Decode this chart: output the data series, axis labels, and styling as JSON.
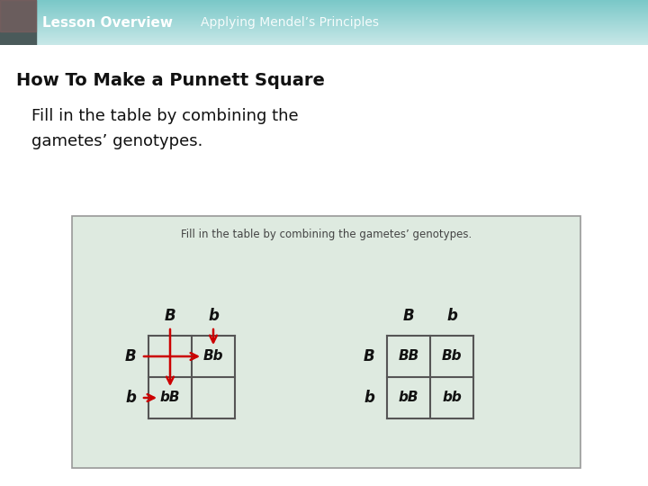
{
  "header_bg_top": "#6bbcbc",
  "header_bg_bottom": "#a8d8d8",
  "header_text1": "Lesson Overview",
  "header_text2": "Applying Mendel’s Principles",
  "main_bg": "#ffffff",
  "title": "How To Make a Punnett Square",
  "subtitle_line1": "Fill in the table by combining the",
  "subtitle_line2": "gametes’ genotypes.",
  "box_bg": "#deeae0",
  "box_border": "#999999",
  "box_inner_text": "Fill in the table by combining the gametes’ genotypes.",
  "left_table": {
    "col_headers": [
      "B",
      "b"
    ],
    "row_headers": [
      "B",
      "b"
    ],
    "cells": [
      [
        "",
        "Bb"
      ],
      [
        "bB",
        ""
      ]
    ],
    "arrow_color": "#cc0000"
  },
  "right_table": {
    "col_headers": [
      "B",
      "b"
    ],
    "row_headers": [
      "B",
      "b"
    ],
    "cells": [
      [
        "BB",
        "Bb"
      ],
      [
        "bB",
        "bb"
      ]
    ]
  }
}
